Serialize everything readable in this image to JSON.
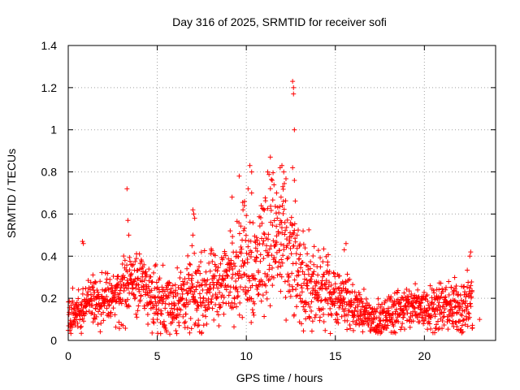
{
  "chart_data": {
    "type": "scatter",
    "title": "Day 316 of 2025, SRMTID for receiver sofi",
    "xlabel": "GPS time / hours",
    "ylabel": "SRMTID / TECUs",
    "xlim": [
      0,
      24
    ],
    "ylim": [
      0,
      1.4
    ],
    "xticks": [
      0,
      5,
      10,
      15,
      20
    ],
    "yticks": [
      0,
      0.2,
      0.4,
      0.6,
      0.8,
      1,
      1.2,
      1.4
    ],
    "ytick_labels": [
      "0",
      "0.2",
      "0.4",
      "0.6",
      "0.8",
      "1",
      "1.2",
      "1.4"
    ],
    "grid": true,
    "marker": "+",
    "series_color": "#ff0000",
    "series": [
      {
        "name": "SRMTID",
        "trend": [
          [
            0,
            0.12
          ],
          [
            0.5,
            0.14
          ],
          [
            1,
            0.17
          ],
          [
            1.5,
            0.19
          ],
          [
            2,
            0.19
          ],
          [
            2.5,
            0.2
          ],
          [
            3,
            0.22
          ],
          [
            3.5,
            0.27
          ],
          [
            4,
            0.28
          ],
          [
            4.5,
            0.24
          ],
          [
            5,
            0.2
          ],
          [
            5.5,
            0.18
          ],
          [
            6,
            0.18
          ],
          [
            6.5,
            0.2
          ],
          [
            7,
            0.21
          ],
          [
            7.5,
            0.22
          ],
          [
            8,
            0.24
          ],
          [
            8.5,
            0.26
          ],
          [
            9,
            0.3
          ],
          [
            9.5,
            0.36
          ],
          [
            10,
            0.4
          ],
          [
            10.5,
            0.34
          ],
          [
            11,
            0.45
          ],
          [
            11.5,
            0.5
          ],
          [
            12,
            0.44
          ],
          [
            12.5,
            0.38
          ],
          [
            13,
            0.3
          ],
          [
            13.5,
            0.25
          ],
          [
            14,
            0.22
          ],
          [
            14.5,
            0.24
          ],
          [
            15,
            0.22
          ],
          [
            15.5,
            0.2
          ],
          [
            16,
            0.16
          ],
          [
            16.5,
            0.13
          ],
          [
            17,
            0.1
          ],
          [
            17.5,
            0.09
          ],
          [
            18,
            0.12
          ],
          [
            18.5,
            0.15
          ],
          [
            19,
            0.15
          ],
          [
            19.5,
            0.16
          ],
          [
            20,
            0.16
          ],
          [
            20.5,
            0.17
          ],
          [
            21,
            0.16
          ],
          [
            21.5,
            0.15
          ],
          [
            22,
            0.16
          ],
          [
            22.5,
            0.18
          ],
          [
            22.7,
            0.18
          ]
        ],
        "spread": [
          [
            0,
            0.1
          ],
          [
            3,
            0.15
          ],
          [
            9,
            0.2
          ],
          [
            10,
            0.3
          ],
          [
            12,
            0.35
          ],
          [
            13,
            0.25
          ],
          [
            15,
            0.15
          ],
          [
            17,
            0.1
          ],
          [
            22.7,
            0.15
          ]
        ],
        "outliers": [
          [
            0.8,
            0.47
          ],
          [
            0.85,
            0.46
          ],
          [
            3.3,
            0.72
          ],
          [
            3.35,
            0.57
          ],
          [
            3.4,
            0.5
          ],
          [
            7.0,
            0.62
          ],
          [
            7.05,
            0.6
          ],
          [
            7.1,
            0.58
          ],
          [
            7.0,
            0.5
          ],
          [
            6.95,
            0.45
          ],
          [
            9.2,
            0.68
          ],
          [
            9.6,
            0.78
          ],
          [
            9.9,
            0.66
          ],
          [
            10.2,
            0.83
          ],
          [
            10.3,
            0.8
          ],
          [
            10.1,
            0.72
          ],
          [
            10.3,
            0.7
          ],
          [
            11.35,
            0.87
          ],
          [
            11.2,
            0.8
          ],
          [
            11.45,
            0.76
          ],
          [
            11.9,
            0.82
          ],
          [
            12.0,
            0.83
          ],
          [
            12.1,
            0.8
          ],
          [
            12.05,
            0.73
          ],
          [
            11.7,
            0.7
          ],
          [
            11.95,
            0.68
          ],
          [
            12.6,
            1.23
          ],
          [
            12.65,
            1.2
          ],
          [
            12.65,
            1.17
          ],
          [
            12.7,
            1.0
          ],
          [
            12.6,
            0.82
          ],
          [
            12.7,
            0.76
          ],
          [
            12.85,
            0.5
          ],
          [
            13.0,
            0.45
          ],
          [
            15.6,
            0.46
          ],
          [
            15.5,
            0.43
          ],
          [
            22.6,
            0.42
          ],
          [
            22.55,
            0.4
          ],
          [
            22.7,
            0.06
          ],
          [
            23.1,
            0.1
          ]
        ]
      }
    ]
  }
}
